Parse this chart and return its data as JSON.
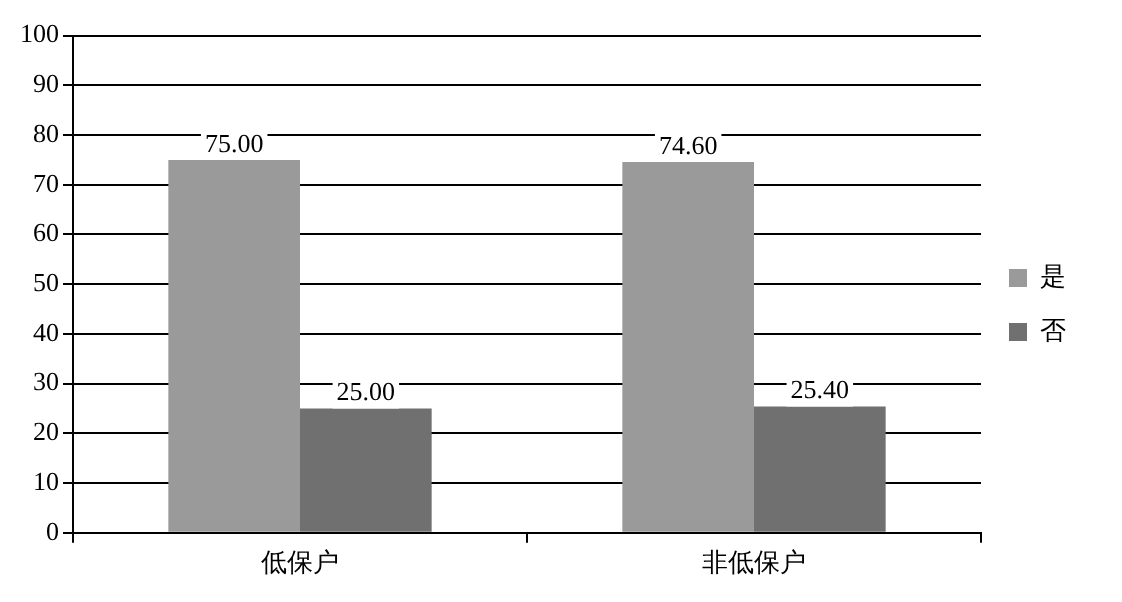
{
  "chart_data": {
    "type": "bar",
    "categories": [
      "低保户",
      "非低保户"
    ],
    "series": [
      {
        "name": "是",
        "color": "#9a9a9a",
        "values": [
          75.0,
          74.6
        ],
        "value_labels": [
          "75.00",
          "74.60"
        ]
      },
      {
        "name": "否",
        "color": "#707070",
        "values": [
          25.0,
          25.4
        ],
        "value_labels": [
          "25.00",
          "25.40"
        ]
      }
    ],
    "ylim": [
      0,
      100
    ],
    "yticks": [
      0,
      10,
      20,
      30,
      40,
      50,
      60,
      70,
      80,
      90,
      100
    ],
    "grid": "y",
    "legend": "right"
  }
}
